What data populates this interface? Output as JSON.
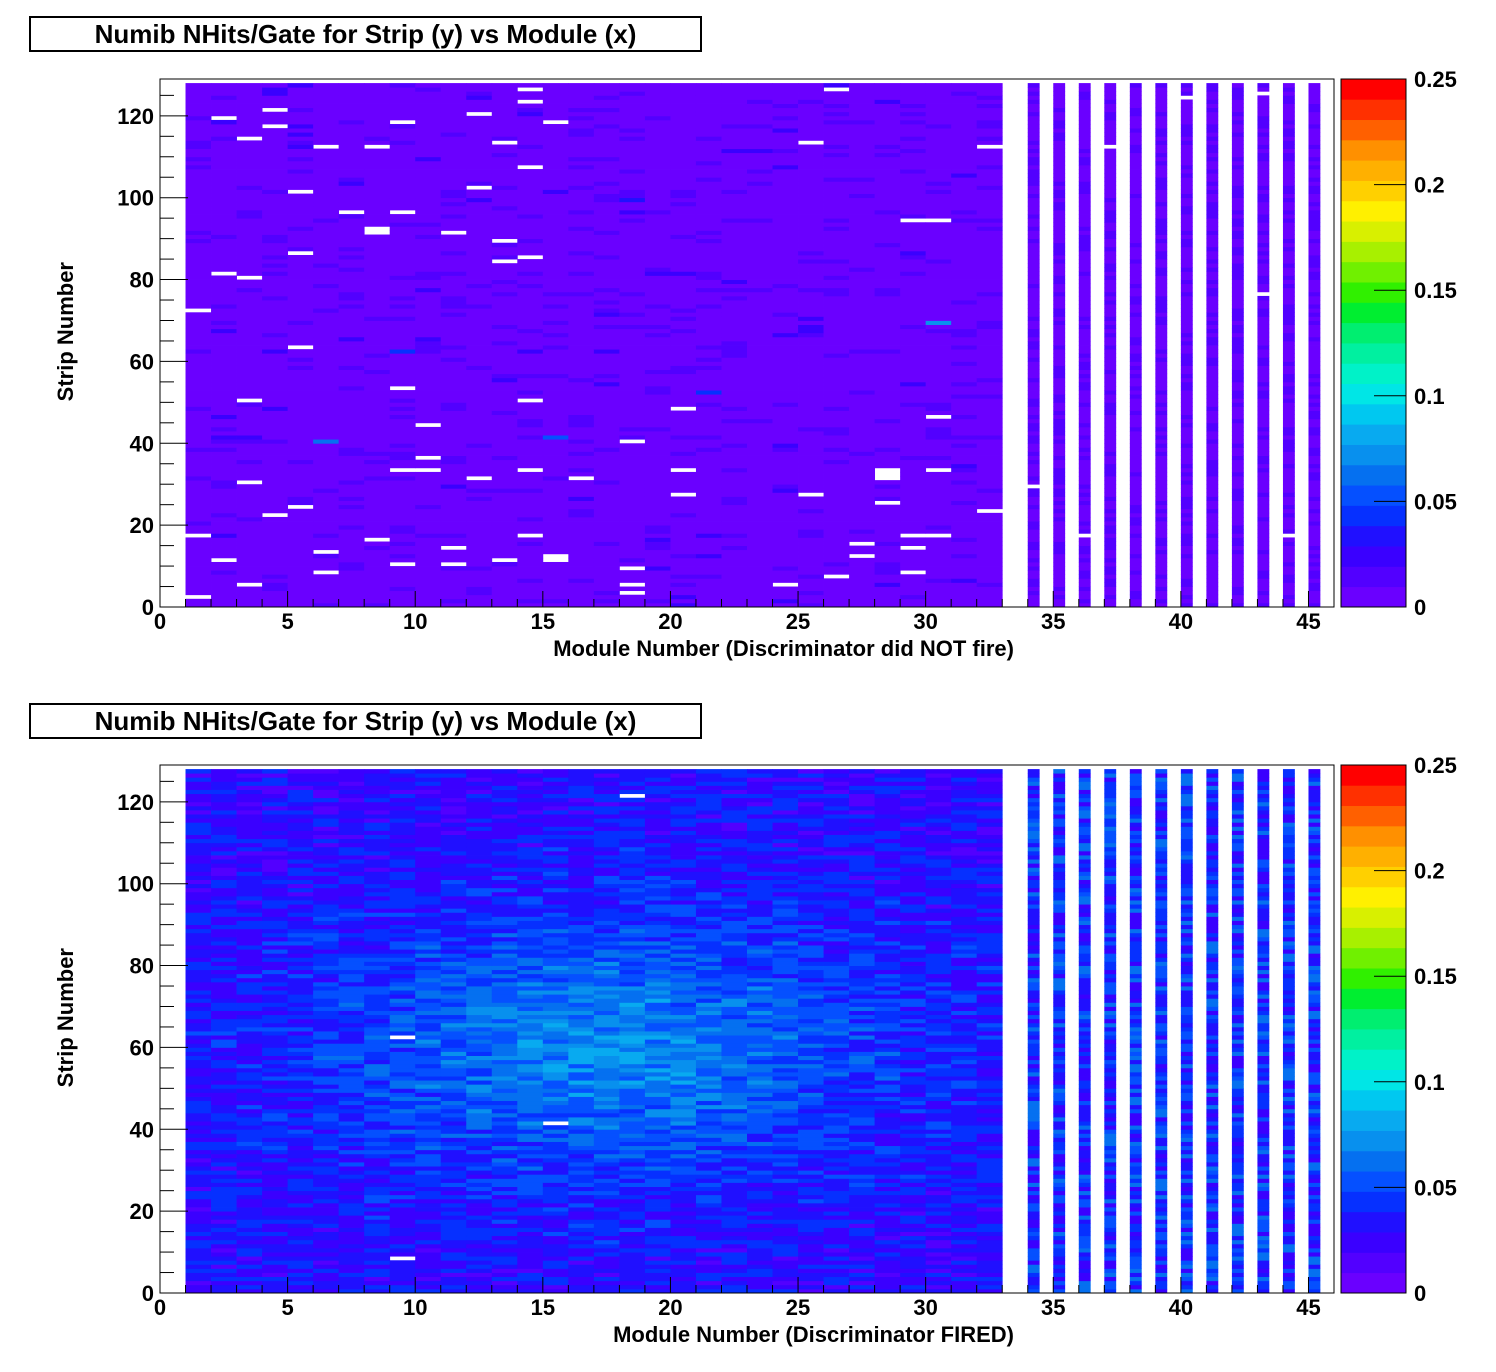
{
  "chart_data": [
    {
      "type": "heatmap",
      "title": "Numib NHits/Gate for Strip (y) vs Module (x)",
      "xlabel": "Module Number (Discriminator did NOT fire)",
      "ylabel": "Strip Number",
      "xlim": [
        0,
        46
      ],
      "ylim": [
        0,
        129
      ],
      "x_ticks": [
        0,
        5,
        10,
        15,
        20,
        25,
        30,
        35,
        40,
        45
      ],
      "y_ticks": [
        0,
        20,
        40,
        60,
        80,
        100,
        120
      ],
      "z_range": [
        0,
        0.25
      ],
      "z_ticks": [
        0,
        0.05,
        0.1,
        0.15,
        0.2,
        0.25
      ],
      "colormap": "rainbow (violet-blue-cyan-green-yellow-orange-red)",
      "grid": false,
      "dense_modules": [
        1,
        32
      ],
      "sparse_modules": [
        34,
        35,
        36,
        37,
        38,
        39,
        40,
        41,
        42,
        43,
        44,
        45
      ],
      "typical_value": 0.003,
      "hotspots": [
        {
          "module": 6,
          "strip": 40,
          "value": 0.06
        },
        {
          "module": 30,
          "strip": 69,
          "value": 0.07
        },
        {
          "module": 15,
          "strip": 41,
          "value": 0.05
        },
        {
          "module": 9,
          "strip": 62,
          "value": 0.045
        },
        {
          "module": 21,
          "strip": 52,
          "value": 0.04
        },
        {
          "module": 18,
          "strip": 99,
          "value": 0.035
        }
      ],
      "empty_cells": [
        [
          1,
          2
        ],
        [
          1,
          17
        ],
        [
          1,
          72
        ],
        [
          2,
          11
        ],
        [
          2,
          81
        ],
        [
          2,
          119
        ],
        [
          3,
          5
        ],
        [
          3,
          30
        ],
        [
          3,
          50
        ],
        [
          3,
          80
        ],
        [
          3,
          114
        ],
        [
          4,
          22
        ],
        [
          4,
          117
        ],
        [
          4,
          121
        ],
        [
          5,
          24
        ],
        [
          5,
          86
        ],
        [
          5,
          63
        ],
        [
          5,
          101
        ],
        [
          6,
          112
        ],
        [
          6,
          128
        ],
        [
          6,
          8
        ],
        [
          6,
          13
        ],
        [
          7,
          96
        ],
        [
          8,
          16
        ],
        [
          8,
          91
        ],
        [
          8,
          92
        ],
        [
          8,
          112
        ],
        [
          9,
          96
        ],
        [
          9,
          33
        ],
        [
          9,
          10
        ],
        [
          9,
          53
        ],
        [
          9,
          118
        ],
        [
          10,
          36
        ],
        [
          10,
          44
        ],
        [
          10,
          33
        ],
        [
          11,
          91
        ],
        [
          11,
          14
        ],
        [
          11,
          10
        ],
        [
          11,
          128
        ],
        [
          12,
          31
        ],
        [
          12,
          120
        ],
        [
          12,
          102
        ],
        [
          13,
          84
        ],
        [
          13,
          113
        ],
        [
          13,
          89
        ],
        [
          13,
          11
        ],
        [
          14,
          123
        ],
        [
          14,
          85
        ],
        [
          14,
          126
        ],
        [
          14,
          33
        ],
        [
          14,
          107
        ],
        [
          14,
          50
        ],
        [
          14,
          17
        ],
        [
          15,
          118
        ],
        [
          15,
          12
        ],
        [
          15,
          11
        ],
        [
          16,
          31
        ],
        [
          16,
          128
        ],
        [
          18,
          40
        ],
        [
          18,
          9
        ],
        [
          18,
          5
        ],
        [
          18,
          3
        ],
        [
          20,
          33
        ],
        [
          20,
          27
        ],
        [
          20,
          48
        ],
        [
          24,
          5
        ],
        [
          25,
          113
        ],
        [
          25,
          128
        ],
        [
          25,
          27
        ],
        [
          26,
          126
        ],
        [
          26,
          7
        ],
        [
          27,
          15
        ],
        [
          27,
          12
        ],
        [
          28,
          32
        ],
        [
          28,
          33
        ],
        [
          28,
          25
        ],
        [
          28,
          31
        ],
        [
          29,
          94
        ],
        [
          29,
          17
        ],
        [
          29,
          14
        ],
        [
          29,
          8
        ],
        [
          30,
          46
        ],
        [
          30,
          33
        ],
        [
          30,
          94
        ],
        [
          30,
          17
        ],
        [
          32,
          23
        ],
        [
          32,
          112
        ],
        [
          33,
          6
        ],
        [
          34,
          29
        ],
        [
          36,
          17
        ],
        [
          37,
          112
        ],
        [
          40,
          124
        ],
        [
          43,
          125
        ],
        [
          43,
          76
        ],
        [
          44,
          17
        ]
      ]
    },
    {
      "type": "heatmap",
      "title": "Numib NHits/Gate for Strip (y) vs Module (x)",
      "xlabel": "Module Number (Discriminator FIRED)",
      "ylabel": "Strip Number",
      "xlim": [
        0,
        46
      ],
      "ylim": [
        0,
        129
      ],
      "x_ticks": [
        0,
        5,
        10,
        15,
        20,
        25,
        30,
        35,
        40,
        45
      ],
      "y_ticks": [
        0,
        20,
        40,
        60,
        80,
        100,
        120
      ],
      "z_range": [
        0,
        0.25
      ],
      "z_ticks": [
        0,
        0.05,
        0.1,
        0.15,
        0.2,
        0.25
      ],
      "colormap": "rainbow (violet-blue-cyan-green-yellow-orange-red)",
      "grid": false,
      "dense_modules": [
        1,
        32
      ],
      "sparse_modules": [
        34,
        35,
        36,
        37,
        38,
        39,
        40,
        41,
        42,
        43,
        44,
        45
      ],
      "peak_region": {
        "module": 17,
        "strip": 60,
        "value": 0.085
      },
      "background_value": 0.03,
      "empty_cells": [
        [
          9,
          62
        ],
        [
          15,
          41
        ],
        [
          18,
          121
        ],
        [
          9,
          8
        ]
      ]
    }
  ]
}
